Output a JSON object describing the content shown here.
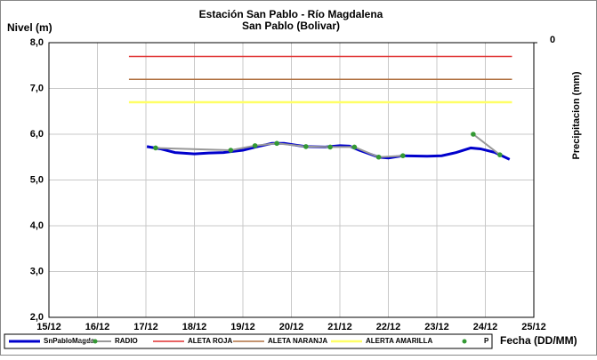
{
  "chart_data": {
    "type": "line",
    "title": "Estación San Pablo - Río Magdalena",
    "subtitle": "San Pablo (Bolivar)",
    "ylabel": "Nivel (m)",
    "xlabel": "Fecha (DD/MM)",
    "y2label": "Precipitacion (mm)",
    "xlim": [
      15,
      25
    ],
    "xticks": [
      {
        "value": 15,
        "label": "15/12"
      },
      {
        "value": 16,
        "label": "16/12"
      },
      {
        "value": 17,
        "label": "17/12"
      },
      {
        "value": 18,
        "label": "18/12"
      },
      {
        "value": 19,
        "label": "19/12"
      },
      {
        "value": 20,
        "label": "20/12"
      },
      {
        "value": 21,
        "label": "21/12"
      },
      {
        "value": 22,
        "label": "22/12"
      },
      {
        "value": 23,
        "label": "23/12"
      },
      {
        "value": 24,
        "label": "24/12"
      },
      {
        "value": 25,
        "label": "25/12"
      }
    ],
    "ylim": [
      2,
      8
    ],
    "yticks": [
      {
        "value": 2,
        "label": "2,0"
      },
      {
        "value": 3,
        "label": "3,0"
      },
      {
        "value": 4,
        "label": "4,0"
      },
      {
        "value": 5,
        "label": "5,0"
      },
      {
        "value": 6,
        "label": "6,0"
      },
      {
        "value": 7,
        "label": "7,0"
      },
      {
        "value": 8,
        "label": "8,0"
      }
    ],
    "y2ticks": [
      0
    ],
    "y2_inverted": true,
    "grid": true,
    "legend": "bottom",
    "series": [
      {
        "name": "SnPabloMagda",
        "color": "#0000cc",
        "style": "line",
        "width": 3,
        "x": [
          17.02,
          17.3,
          17.6,
          18.0,
          18.3,
          18.6,
          19.0,
          19.3,
          19.6,
          19.85,
          20.1,
          20.3,
          20.7,
          21.0,
          21.2,
          21.4,
          21.8,
          22.0,
          22.3,
          22.8,
          23.1,
          23.4,
          23.7,
          23.9,
          24.2,
          24.5
        ],
        "values": [
          5.73,
          5.68,
          5.6,
          5.57,
          5.59,
          5.6,
          5.65,
          5.73,
          5.8,
          5.8,
          5.76,
          5.73,
          5.72,
          5.75,
          5.74,
          5.65,
          5.5,
          5.48,
          5.53,
          5.52,
          5.53,
          5.6,
          5.7,
          5.68,
          5.6,
          5.45
        ]
      },
      {
        "name": "RADIO",
        "color": "#999999",
        "marker": "#339933",
        "style": "line-markers",
        "width": 2,
        "x": [
          17.2,
          18.75,
          19.25,
          19.7,
          20.3,
          20.8,
          21.3,
          21.8,
          22.3,
          23.0,
          23.75,
          24.3
        ],
        "values": [
          5.7,
          5.65,
          5.75,
          5.8,
          5.73,
          5.72,
          5.72,
          5.5,
          5.53,
          null,
          6.0,
          5.55
        ]
      },
      {
        "name": "ALETA ROJA",
        "color": "#e03030",
        "style": "line",
        "width": 1.5,
        "x": [
          16.65,
          24.55
        ],
        "values": [
          7.7,
          7.7
        ]
      },
      {
        "name": "ALETA NARANJA",
        "color": "#b07040",
        "style": "line",
        "width": 1.5,
        "x": [
          16.65,
          24.55
        ],
        "values": [
          7.2,
          7.2
        ]
      },
      {
        "name": "ALERTA AMARILLA",
        "color": "#ffff66",
        "style": "line",
        "width": 2.5,
        "x": [
          16.65,
          24.55
        ],
        "values": [
          6.7,
          6.7
        ]
      },
      {
        "name": "P",
        "color": "#339933",
        "style": "markers",
        "axis": "y2",
        "x": [],
        "values": []
      }
    ]
  }
}
